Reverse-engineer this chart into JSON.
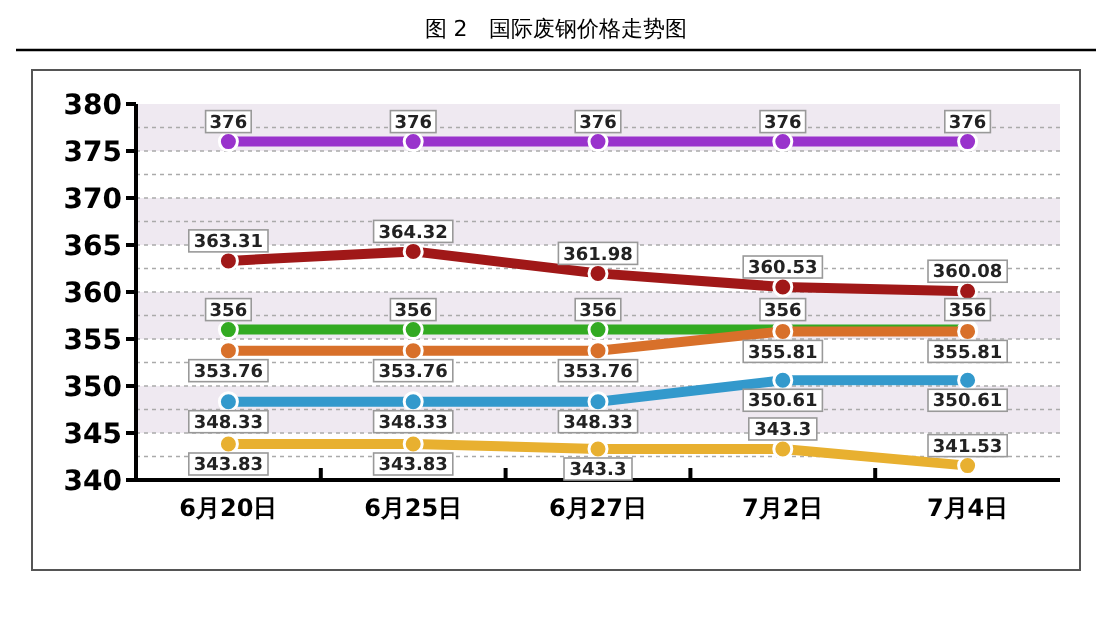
{
  "chart_data": {
    "type": "line",
    "title": "图 2　国际废钢价格走势图",
    "categories": [
      "6月20日",
      "6月25日",
      "6月27日",
      "7月2日",
      "7月4日"
    ],
    "series": [
      {
        "color": "#9933cc",
        "values": [
          376,
          376,
          376,
          376,
          376
        ]
      },
      {
        "color": "#a01818",
        "values": [
          363.31,
          364.32,
          361.98,
          360.53,
          360.08
        ]
      },
      {
        "color": "#33aa22",
        "values": [
          356,
          356,
          356,
          356,
          356
        ]
      },
      {
        "color": "#d8702a",
        "values": [
          353.76,
          353.76,
          353.76,
          355.81,
          355.81
        ]
      },
      {
        "color": "#3399cc",
        "values": [
          348.33,
          348.33,
          348.33,
          350.61,
          350.61
        ]
      },
      {
        "color": "#e8b030",
        "values": [
          343.83,
          343.83,
          343.3,
          343.3,
          341.53
        ]
      }
    ],
    "ylim": [
      340,
      380
    ],
    "yticks": [
      340,
      345,
      350,
      355,
      360,
      365,
      370,
      375,
      380
    ],
    "grid": "y",
    "marker": "circle",
    "data_labels": true
  }
}
